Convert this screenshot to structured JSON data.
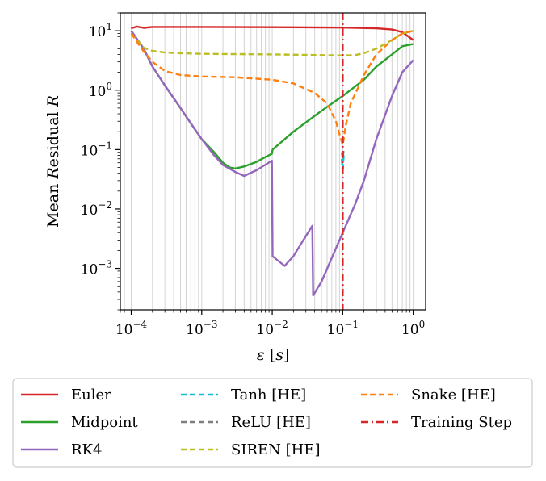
{
  "chart_data": {
    "type": "line",
    "xlabel": "ε [s]",
    "ylabel": "Mean Residual R",
    "xscale": "log",
    "yscale": "log",
    "xlim": [
      7e-05,
      1.5
    ],
    "ylim": [
      0.0002,
      20
    ],
    "x_ticks": [
      0.0001,
      0.001,
      0.01,
      0.1,
      1
    ],
    "x_tick_labels": [
      "10^-4",
      "10^-3",
      "10^-2",
      "10^-1",
      "10^0"
    ],
    "y_ticks": [
      0.001,
      0.01,
      0.1,
      1,
      10
    ],
    "y_tick_labels": [
      "10^-3",
      "10^-2",
      "10^-1",
      "10^0",
      "10^1"
    ],
    "grid": "vertical minor gridlines",
    "legend_position": "below plot",
    "legend_columns": 3,
    "series": [
      {
        "name": "Euler",
        "color": "#d62728",
        "style": "solid",
        "x": [
          0.0001,
          0.00012,
          0.00015,
          0.0002,
          0.0005,
          0.001,
          0.01,
          0.1,
          0.3,
          0.5,
          0.7,
          1.0
        ],
        "y": [
          11,
          11.8,
          11.2,
          11.6,
          11.6,
          11.6,
          11.5,
          11.3,
          11.0,
          10.5,
          9.5,
          7.0
        ]
      },
      {
        "name": "Midpoint",
        "color": "#2ca02c",
        "style": "solid",
        "x": [
          0.0001,
          0.00015,
          0.0002,
          0.0003,
          0.0005,
          0.0008,
          0.001,
          0.0015,
          0.002,
          0.0025,
          0.003,
          0.004,
          0.006,
          0.008,
          0.0099,
          0.0101,
          0.02,
          0.05,
          0.1,
          0.2,
          0.3,
          0.5,
          0.7,
          1.0
        ],
        "y": [
          10,
          5.0,
          2.5,
          1.2,
          0.5,
          0.22,
          0.15,
          0.09,
          0.06,
          0.05,
          0.048,
          0.052,
          0.062,
          0.075,
          0.085,
          0.1,
          0.2,
          0.45,
          0.8,
          1.5,
          2.5,
          4.0,
          5.5,
          6.0
        ]
      },
      {
        "name": "RK4",
        "color": "#9467bd",
        "style": "solid",
        "x": [
          0.0001,
          0.00015,
          0.0002,
          0.0003,
          0.0005,
          0.0008,
          0.001,
          0.0015,
          0.002,
          0.003,
          0.004,
          0.006,
          0.0099,
          0.0101,
          0.015,
          0.02,
          0.03,
          0.037,
          0.038,
          0.05,
          0.07,
          0.1,
          0.15,
          0.2,
          0.3,
          0.5,
          0.7,
          1.0
        ],
        "y": [
          10,
          5.0,
          2.5,
          1.2,
          0.5,
          0.22,
          0.15,
          0.08,
          0.055,
          0.042,
          0.036,
          0.045,
          0.065,
          0.0016,
          0.0011,
          0.0016,
          0.0035,
          0.0052,
          0.00035,
          0.0006,
          0.0015,
          0.004,
          0.012,
          0.03,
          0.15,
          0.8,
          2.0,
          3.2
        ]
      },
      {
        "name": "Tanh [HE]",
        "color": "#17becf",
        "style": "dashed",
        "x": [
          0.097,
          0.1,
          0.103
        ],
        "y": [
          0.07,
          0.04,
          0.08
        ]
      },
      {
        "name": "ReLU [HE]",
        "color": "#7f7f7f",
        "style": "dashed",
        "x": [
          0.097,
          0.1,
          0.103
        ],
        "y": [
          0.09,
          0.07,
          0.1
        ]
      },
      {
        "name": "SIREN [HE]",
        "color": "#bcbd22",
        "style": "dashed",
        "x": [
          0.0001,
          0.00015,
          0.0002,
          0.0003,
          0.0005,
          0.001,
          0.01,
          0.05,
          0.1,
          0.15,
          0.2,
          0.3,
          0.5,
          0.7,
          1.0
        ],
        "y": [
          9.0,
          5.2,
          4.6,
          4.3,
          4.2,
          4.1,
          4.0,
          3.9,
          3.85,
          3.9,
          4.2,
          5.0,
          7.0,
          9.0,
          10.0
        ]
      },
      {
        "name": "Snake [HE]",
        "color": "#ff7f0e",
        "style": "dashed",
        "x": [
          0.0001,
          0.00015,
          0.0002,
          0.0003,
          0.0005,
          0.001,
          0.003,
          0.01,
          0.02,
          0.04,
          0.06,
          0.08,
          0.09,
          0.1,
          0.11,
          0.13,
          0.2,
          0.3,
          0.5,
          0.7,
          1.0
        ],
        "y": [
          9.0,
          4.5,
          3.0,
          2.1,
          1.8,
          1.7,
          1.65,
          1.5,
          1.3,
          0.9,
          0.6,
          0.3,
          0.18,
          0.12,
          0.25,
          0.6,
          1.8,
          4.0,
          7.0,
          9.0,
          10.0
        ]
      },
      {
        "name": "Training Step",
        "color": "#d62728",
        "style": "dashdot",
        "vertical_line_x": 0.1
      }
    ]
  }
}
